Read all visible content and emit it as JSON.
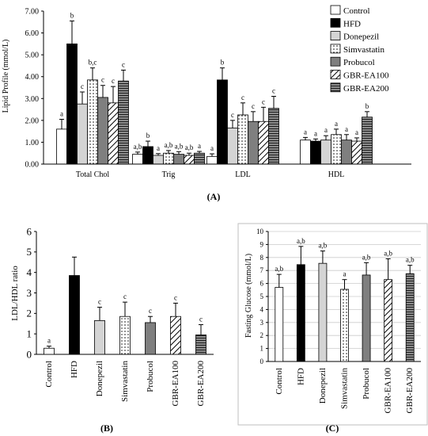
{
  "colors": {
    "white": "#ffffff",
    "black": "#000000",
    "light_gray": "#d4d4d4",
    "dark_gray": "#7f7f7f",
    "mid_gray": "#8c8c8c",
    "gridline": "#cccccc"
  },
  "patterns": {
    "Control": "white",
    "HFD": "black",
    "Donepezil": "lightgray",
    "Simvastatin": "dotted",
    "Probucol": "darkgray",
    "GBR-EA100": "diagonal",
    "GBR-EA200": "horizontal"
  },
  "chart_data": [
    {
      "type": "bar",
      "panel_label": "(A)",
      "ylabel": "Lipid Profile (mmol/L)",
      "ylim": [
        0,
        7
      ],
      "yticks": [
        "0.00",
        "1.00",
        "2.00",
        "3.00",
        "4.00",
        "5.00",
        "6.00",
        "7.00"
      ],
      "grid": false,
      "legend": "top-right",
      "categories": [
        "Total Chol",
        "Trig",
        "LDL",
        "HDL"
      ],
      "series": [
        {
          "name": "Control",
          "values": [
            1.6,
            0.45,
            0.35,
            1.1
          ],
          "errors": [
            0.45,
            0.1,
            0.12,
            0.12
          ],
          "labels": [
            "a",
            "a,b",
            "a",
            "a"
          ]
        },
        {
          "name": "HFD",
          "values": [
            5.5,
            0.8,
            3.85,
            1.05
          ],
          "errors": [
            1.05,
            0.25,
            0.55,
            0.1
          ],
          "labels": [
            "b",
            "b",
            "b",
            "a"
          ]
        },
        {
          "name": "Donepezil",
          "values": [
            2.75,
            0.4,
            1.65,
            1.1
          ],
          "errors": [
            0.55,
            0.08,
            0.35,
            0.2
          ],
          "labels": [
            "c",
            "a",
            "c",
            "a"
          ]
        },
        {
          "name": "Simvastatin",
          "values": [
            3.85,
            0.5,
            2.25,
            1.35
          ],
          "errors": [
            0.55,
            0.12,
            0.55,
            0.25
          ],
          "labels": [
            "b,c",
            "a,b",
            "c",
            "a"
          ]
        },
        {
          "name": "Probucol",
          "values": [
            3.05,
            0.45,
            1.95,
            1.1
          ],
          "errors": [
            0.55,
            0.12,
            0.45,
            0.25
          ],
          "labels": [
            "c",
            "a,b",
            "c",
            "a"
          ]
        },
        {
          "name": "GBR-EA100",
          "values": [
            2.8,
            0.4,
            1.95,
            1.05
          ],
          "errors": [
            0.75,
            0.1,
            0.65,
            0.15
          ],
          "labels": [
            "c",
            "a,b",
            "c",
            "a"
          ]
        },
        {
          "name": "GBR-EA200",
          "values": [
            3.8,
            0.5,
            2.55,
            2.15
          ],
          "errors": [
            0.5,
            0.08,
            0.55,
            0.25
          ],
          "labels": [
            "c",
            "a",
            "c",
            "b"
          ]
        }
      ]
    },
    {
      "type": "bar",
      "panel_label": "(B)",
      "ylabel": "LDL/HDL  ratio",
      "ylim": [
        0,
        6
      ],
      "yticks": [
        "0",
        "1",
        "2",
        "3",
        "4",
        "5",
        "6"
      ],
      "grid": false,
      "categories": [
        "Control",
        "HFD",
        "Donepezil",
        "Simvastatin",
        "Probucol",
        "GBR-EA100",
        "GBR-EA200"
      ],
      "values": [
        0.3,
        3.85,
        1.65,
        1.85,
        1.55,
        1.85,
        0.95
      ],
      "errors": [
        0.1,
        0.9,
        0.65,
        0.7,
        0.3,
        0.65,
        0.5
      ],
      "labels": [
        "a",
        "",
        "c",
        "c",
        "c",
        "c",
        "c"
      ]
    },
    {
      "type": "bar",
      "panel_label": "(C)",
      "ylabel": "Fasting Glucose (mmol/L)",
      "ylim": [
        0,
        10
      ],
      "yticks": [
        "0",
        "1",
        "2",
        "3",
        "4",
        "5",
        "6",
        "7",
        "8",
        "9",
        "10"
      ],
      "grid": true,
      "categories": [
        "Control",
        "HFD",
        "Donepezil",
        "Simvastatin",
        "Probucol",
        "GBR-EA100",
        "GBR-EA200"
      ],
      "values": [
        5.7,
        7.45,
        7.55,
        5.55,
        6.65,
        6.3,
        6.75
      ],
      "errors": [
        1.0,
        1.4,
        0.95,
        0.75,
        0.95,
        1.6,
        0.65
      ],
      "labels": [
        "a,b",
        "a,b",
        "a,b",
        "a",
        "a,b",
        "a,b",
        "a,b"
      ]
    }
  ]
}
